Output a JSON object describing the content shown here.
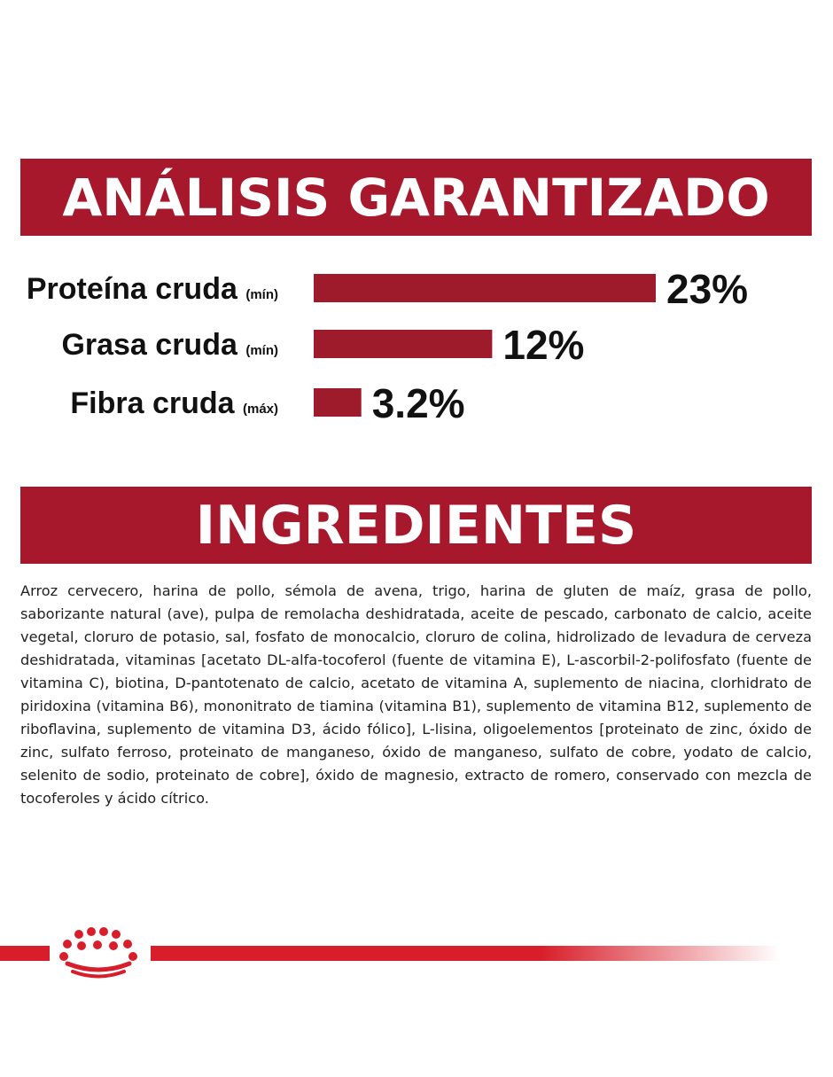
{
  "colors": {
    "brand": "#a7182c",
    "bar": "#9e1b2c",
    "footer": "#d81e2a"
  },
  "analysis": {
    "title": "ANÁLISIS GARANTIZADO"
  },
  "chart_data": {
    "type": "bar",
    "orientation": "horizontal",
    "categories": [
      "Proteína cruda",
      "Grasa cruda",
      "Fibra cruda"
    ],
    "qualifiers": [
      "(mín)",
      "(mín)",
      "(máx)"
    ],
    "values": [
      23,
      12,
      3.2
    ],
    "value_labels": [
      "23%",
      "12%",
      "3.2%"
    ],
    "unit": "%",
    "grid": false,
    "legend": "none"
  },
  "ingredients": {
    "title": "INGREDIENTES",
    "text": "Arroz cervecero, harina de pollo, sémola de avena, trigo, harina de gluten de maíz, grasa de pollo, saborizante natural (ave), pulpa de remolacha deshidratada, aceite de pescado, carbonato de calcio, aceite vegetal, cloruro de potasio, sal, fosfato de monocalcio, cloruro de colina, hidrolizado de levadura de cerveza deshidratada, vitaminas [acetato DL-alfa-tocoferol (fuente de vitamina E), L-ascorbil-2-polifosfato (fuente de vitamina C), biotina, D-pantotenato de calcio, acetato de vitamina A, suplemento de niacina, clorhidrato de piridoxina (vitamina B6), mononitrato de tiamina (vitamina B1), suplemento de vitamina B12, suplemento de riboflavina, suplemento de vitamina D3, ácido fólico], L-lisina, oligoelementos [proteinato de zinc, óxido de zinc, sulfato ferroso, proteinato de manganeso, óxido de manganeso, sulfato de cobre, yodato de calcio, selenito de sodio, proteinato de cobre], óxido de magnesio, extracto de romero, conservado con mezcla de tocoferoles y ácido cítrico."
  },
  "footer": {
    "logo": "crown-logo"
  }
}
